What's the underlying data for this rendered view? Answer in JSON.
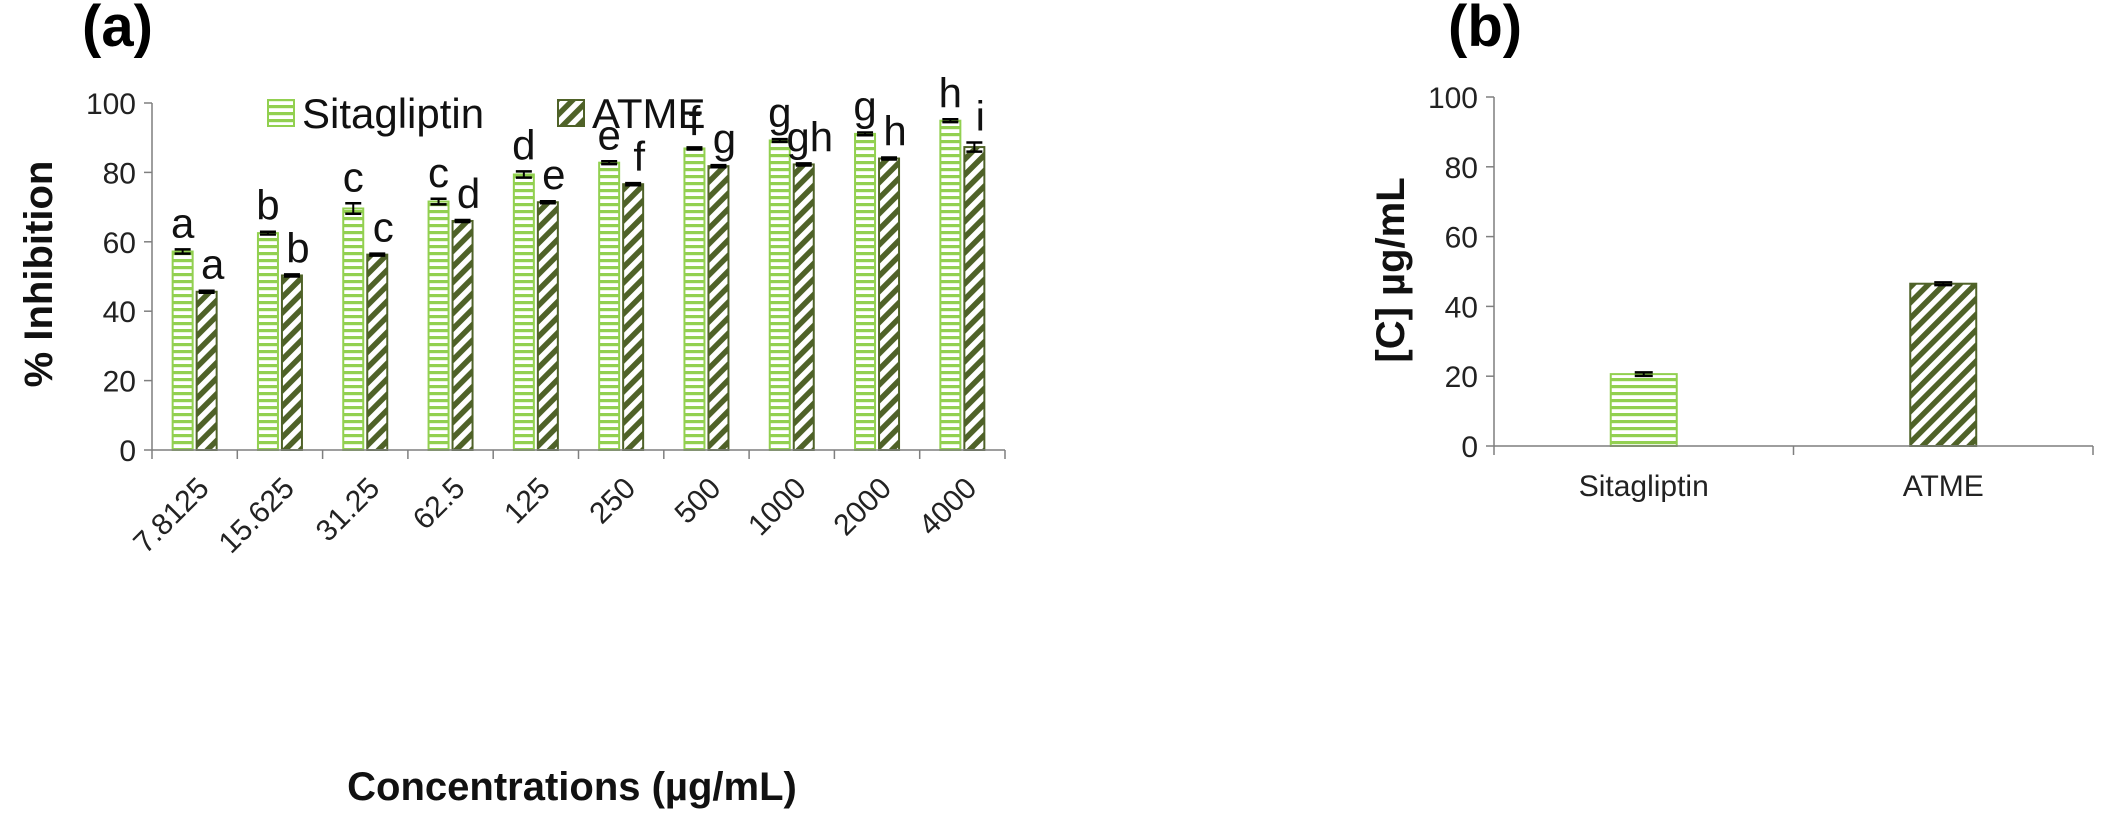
{
  "chart_data": [
    {
      "type": "bar",
      "panel_label": "(a)",
      "xlabel": "Concentrations (µg/mL)",
      "ylabel": "% Inhibition",
      "ylim": [
        0,
        100
      ],
      "yticks": [
        "0",
        "20",
        "40",
        "60",
        "80",
        "100"
      ],
      "categories": [
        "7.8125",
        "15.625",
        "31.25",
        "62.5",
        "125",
        "250",
        "500",
        "1000",
        "2000",
        "4000"
      ],
      "legend_position": "top",
      "series": [
        {
          "name": "Sitagliptin",
          "pattern": "horizontal-lines",
          "color": "#92d050",
          "values": [
            57.2,
            62.5,
            69.6,
            71.6,
            79.4,
            82.8,
            86.9,
            89.2,
            91.1,
            94.9
          ],
          "errors": [
            0.6,
            0.4,
            1.5,
            0.8,
            0.9,
            0.4,
            0.3,
            0.4,
            0.4,
            0.4
          ],
          "letters": [
            "a",
            "b",
            "c",
            "c",
            "d",
            "e",
            "f",
            "g",
            "g",
            "h"
          ]
        },
        {
          "name": "ATME",
          "pattern": "diagonal-lines",
          "color": "#4f6228",
          "values": [
            45.6,
            50.3,
            56.3,
            66.0,
            71.4,
            76.6,
            81.8,
            82.3,
            84.0,
            87.3
          ],
          "errors": [
            0.3,
            0.3,
            0.3,
            0.3,
            0.3,
            0.3,
            0.3,
            0.3,
            0.3,
            1.3
          ],
          "letters": [
            "a",
            "b",
            "c",
            "d",
            "e",
            "f",
            "g",
            "gh",
            "h",
            "i"
          ]
        }
      ],
      "grid": false
    },
    {
      "type": "bar",
      "panel_label": "(b)",
      "xlabel": "",
      "ylabel": "[C] µg/mL",
      "ylim": [
        0,
        100
      ],
      "yticks": [
        "0",
        "20",
        "40",
        "60",
        "80",
        "100"
      ],
      "categories": [
        "Sitagliptin",
        "ATME"
      ],
      "values": [
        20.6,
        46.5
      ],
      "errors": [
        0.5,
        0.4
      ],
      "patterns": [
        "horizontal-lines",
        "diagonal-lines"
      ],
      "colors": [
        "#92d050",
        "#4f6228"
      ],
      "grid": false
    }
  ]
}
